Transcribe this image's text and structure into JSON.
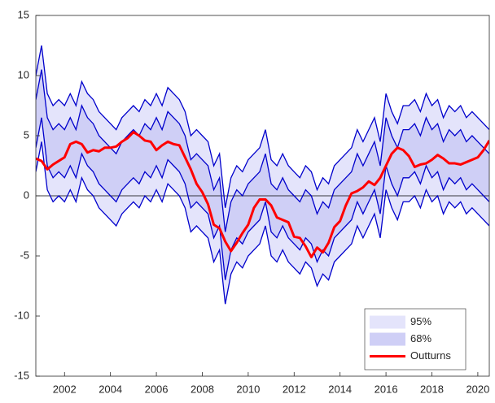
{
  "chart_data": {
    "type": "fan",
    "x": [
      2000.75,
      2001,
      2001.25,
      2001.5,
      2001.75,
      2002,
      2002.25,
      2002.5,
      2002.75,
      2003,
      2003.25,
      2003.5,
      2003.75,
      2004,
      2004.25,
      2004.5,
      2004.75,
      2005,
      2005.25,
      2005.5,
      2005.75,
      2006,
      2006.25,
      2006.5,
      2006.75,
      2007,
      2007.25,
      2007.5,
      2007.75,
      2008,
      2008.25,
      2008.5,
      2008.75,
      2009,
      2009.25,
      2009.5,
      2009.75,
      2010,
      2010.25,
      2010.5,
      2010.75,
      2011,
      2011.25,
      2011.5,
      2011.75,
      2012,
      2012.25,
      2012.5,
      2012.75,
      2013,
      2013.25,
      2013.5,
      2013.75,
      2014,
      2014.25,
      2014.5,
      2014.75,
      2015,
      2015.25,
      2015.5,
      2015.75,
      2016,
      2016.25,
      2016.5,
      2016.75,
      2017,
      2017.25,
      2017.5,
      2017.75,
      2018,
      2018.25,
      2018.5,
      2018.75,
      2019,
      2019.25,
      2019.5,
      2019.75,
      2020,
      2020.25,
      2020.5
    ],
    "bands": [
      {
        "name": "95%",
        "color": "#e4e4fb",
        "edge_color": "#0000cc",
        "upper": [
          10,
          12.5,
          8.5,
          7.5,
          8,
          7.5,
          8.5,
          7.5,
          9.5,
          8.5,
          8,
          7,
          6.5,
          6,
          5.5,
          6.5,
          7,
          7.5,
          7,
          8,
          7.5,
          8.5,
          7.5,
          9,
          8.5,
          8,
          7,
          5,
          5.5,
          5,
          4.5,
          2.5,
          3.5,
          -1,
          1.5,
          2.5,
          2,
          3,
          3.5,
          4,
          5.5,
          3,
          2.5,
          3.5,
          2.5,
          2,
          1.5,
          2.5,
          2,
          0.5,
          1.5,
          1,
          2.5,
          3,
          3.5,
          4,
          5.5,
          4.5,
          5.5,
          6.5,
          4.5,
          8.5,
          7,
          6,
          7.5,
          7.5,
          8,
          7,
          8.5,
          7.5,
          8,
          6.5,
          7.5,
          7,
          7.5,
          6.5,
          7,
          6.5,
          6,
          5.5
        ],
        "lower": [
          2,
          4.5,
          0.5,
          -0.5,
          0,
          -0.5,
          0.5,
          -0.5,
          1.5,
          0.5,
          0,
          -1,
          -1.5,
          -2,
          -2.5,
          -1.5,
          -1,
          -0.5,
          -1,
          0,
          -0.5,
          0.5,
          -0.5,
          1,
          0.5,
          0,
          -1,
          -3,
          -2.5,
          -3,
          -3.5,
          -5.5,
          -4.5,
          -9,
          -6.5,
          -5.5,
          -6,
          -5,
          -4.5,
          -4,
          -2.5,
          -5,
          -5.5,
          -4.5,
          -5.5,
          -6,
          -6.5,
          -5.5,
          -6,
          -7.5,
          -6.5,
          -7,
          -5.5,
          -5,
          -4.5,
          -4,
          -2.5,
          -3.5,
          -2.5,
          -1.5,
          -3.5,
          0.5,
          -1,
          -2,
          -0.5,
          -0.5,
          0,
          -1,
          0.5,
          -0.5,
          0,
          -1.5,
          -0.5,
          -1,
          -0.5,
          -1.5,
          -1,
          -1.5,
          -2,
          -2.5
        ]
      },
      {
        "name": "68%",
        "color": "#cfcff6",
        "edge_color": "#0000cc",
        "upper": [
          8,
          10.5,
          6.5,
          5.5,
          6,
          5.5,
          6.5,
          5.5,
          7.5,
          6.5,
          6,
          5,
          4.5,
          4,
          3.5,
          4.5,
          5,
          5.5,
          5,
          6,
          5.5,
          6.5,
          5.5,
          7,
          6.5,
          6,
          5,
          3,
          3.5,
          3,
          2.5,
          0.5,
          1.5,
          -3,
          -0.5,
          0.5,
          0,
          1,
          1.5,
          2,
          3.5,
          1,
          0.5,
          1.5,
          0.5,
          0,
          -0.5,
          0.5,
          0,
          -1.5,
          -0.5,
          -1,
          0.5,
          1,
          1.5,
          2,
          3.5,
          2.5,
          3.5,
          4.5,
          2.5,
          6.5,
          5,
          4,
          5.5,
          5.5,
          6,
          5,
          6.5,
          5.5,
          6,
          4.5,
          5.5,
          5,
          5.5,
          4.5,
          5,
          4.5,
          4,
          3.5
        ],
        "lower": [
          4,
          6.5,
          2.5,
          1.5,
          2,
          1.5,
          2.5,
          1.5,
          3.5,
          2.5,
          2,
          1,
          0.5,
          0,
          -0.5,
          0.5,
          1,
          1.5,
          1,
          2,
          1.5,
          2.5,
          1.5,
          3,
          2.5,
          2,
          1,
          -1,
          -0.5,
          -1,
          -1.5,
          -3.5,
          -2.5,
          -7,
          -4.5,
          -3.5,
          -4,
          -3,
          -2.5,
          -2,
          -0.5,
          -3,
          -3.5,
          -2.5,
          -3.5,
          -4,
          -4.5,
          -3.5,
          -4,
          -5.5,
          -4.5,
          -5,
          -3.5,
          -3,
          -2.5,
          -2,
          -0.5,
          -1.5,
          -0.5,
          0.5,
          -1.5,
          2.5,
          1,
          0,
          1.5,
          1.5,
          2,
          1,
          2.5,
          1.5,
          2,
          0.5,
          1.5,
          1,
          1.5,
          0.5,
          1,
          0.5,
          0,
          -0.5
        ]
      }
    ],
    "series": [
      {
        "name": "Outturns",
        "color": "#ff0000",
        "values": [
          3.1,
          2.9,
          2.2,
          2.6,
          2.9,
          3.2,
          4.3,
          4.5,
          4.3,
          3.6,
          3.8,
          3.7,
          4.0,
          4.0,
          4.1,
          4.5,
          4.8,
          5.3,
          5.0,
          4.6,
          4.5,
          3.8,
          4.2,
          4.5,
          4.3,
          4.2,
          3.2,
          2.2,
          1.0,
          0.3,
          -0.7,
          -2.4,
          -2.7,
          -3.8,
          -4.6,
          -3.9,
          -3.1,
          -2.4,
          -1.0,
          -0.3,
          -0.3,
          -0.8,
          -1.8,
          -2.0,
          -2.2,
          -3.4,
          -3.5,
          -4.2,
          -5.1,
          -4.3,
          -4.7,
          -3.9,
          -2.6,
          -2.1,
          -0.8,
          0.2,
          0.4,
          0.7,
          1.2,
          0.9,
          1.5,
          2.5,
          3.5,
          4.0,
          3.8,
          3.3,
          2.4,
          2.6,
          2.7,
          3.0,
          3.4,
          3.1,
          2.7,
          2.7,
          2.6,
          2.8,
          3.0,
          3.2,
          3.8,
          4.6
        ]
      }
    ],
    "xlim": [
      2000.75,
      2020.5
    ],
    "xticks": [
      2002,
      2004,
      2006,
      2008,
      2010,
      2012,
      2014,
      2016,
      2018,
      2020
    ],
    "ylim": [
      -15,
      15
    ],
    "yticks": [
      -15,
      -10,
      -5,
      0,
      5,
      10,
      15
    ],
    "zero_line": true,
    "legend": "lower right"
  }
}
